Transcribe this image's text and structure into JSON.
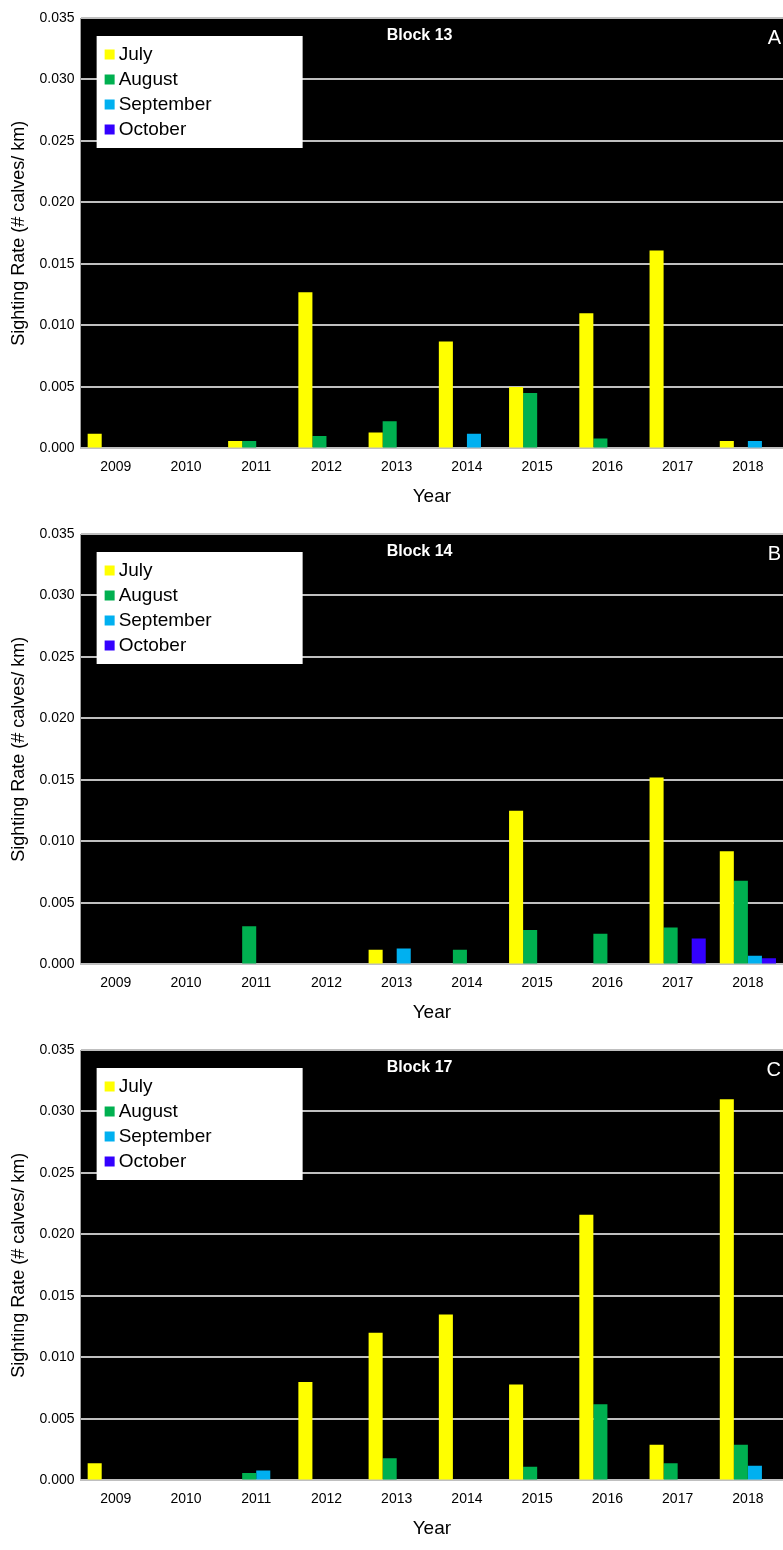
{
  "chart_data": [
    {
      "type": "bar",
      "title": "Block 13",
      "xlabel": "Year",
      "ylabel": "Sighting Rate (# calves/ km)",
      "annotations": [
        "A"
      ],
      "categories": [
        "2009",
        "2010",
        "2011",
        "2012",
        "2013",
        "2014",
        "2015",
        "2016",
        "2017",
        "2018"
      ],
      "series": [
        {
          "name": "July",
          "color": "#ffff00",
          "values": [
            0.0012,
            0,
            0.0006,
            0.0127,
            0.0013,
            0.0087,
            0.005,
            0.011,
            0.0161,
            0.0006
          ]
        },
        {
          "name": "August",
          "color": "#00b050",
          "values": [
            0,
            0,
            0.0006,
            0.001,
            0.0022,
            0,
            0.0045,
            0.0008,
            0,
            0
          ]
        },
        {
          "name": "September",
          "color": "#00b0f0",
          "values": [
            0,
            0,
            0,
            0,
            0,
            0.0012,
            0,
            0,
            0,
            0.0006
          ]
        },
        {
          "name": "October",
          "color": "#3300ff",
          "values": [
            0,
            0,
            0,
            0,
            0,
            0,
            0,
            0,
            0,
            0
          ]
        }
      ],
      "ylim": [
        0,
        0.035
      ],
      "yticks": [
        {
          "value": 0,
          "label": "0.000"
        },
        {
          "value": 0.005,
          "label": "0.005"
        },
        {
          "value": 0.01,
          "label": "0.010"
        },
        {
          "value": 0.015,
          "label": "0.015"
        },
        {
          "value": 0.02,
          "label": "0.020"
        },
        {
          "value": 0.025,
          "label": "0.025"
        },
        {
          "value": 0.03,
          "label": "0.030"
        },
        {
          "value": 0.035,
          "label": "0.035"
        }
      ],
      "grid": "y",
      "legend": "top left"
    },
    {
      "type": "bar",
      "title": "Block 14",
      "xlabel": "Year",
      "ylabel": "Sighting Rate (# calves/ km)",
      "annotations": [
        "B"
      ],
      "categories": [
        "2009",
        "2010",
        "2011",
        "2012",
        "2013",
        "2014",
        "2015",
        "2016",
        "2017",
        "2018"
      ],
      "series": [
        {
          "name": "July",
          "color": "#ffff00",
          "values": [
            0,
            0,
            0,
            0,
            0.0012,
            0,
            0.0125,
            0,
            0.0152,
            0.0092
          ]
        },
        {
          "name": "August",
          "color": "#00b050",
          "values": [
            0,
            0,
            0.0031,
            0,
            0,
            0.0012,
            0.0028,
            0.0025,
            0.003,
            0.0068
          ]
        },
        {
          "name": "September",
          "color": "#00b0f0",
          "values": [
            0,
            0,
            0,
            0,
            0.0013,
            0,
            0,
            0,
            0,
            0.0007
          ]
        },
        {
          "name": "October",
          "color": "#3300ff",
          "values": [
            0,
            0,
            0,
            0,
            0,
            0,
            0,
            0,
            0.0021,
            0.0005
          ]
        }
      ],
      "ylim": [
        0,
        0.035
      ],
      "yticks": [
        {
          "value": 0,
          "label": "0.000"
        },
        {
          "value": 0.005,
          "label": "0.005"
        },
        {
          "value": 0.01,
          "label": "0.010"
        },
        {
          "value": 0.015,
          "label": "0.015"
        },
        {
          "value": 0.02,
          "label": "0.020"
        },
        {
          "value": 0.025,
          "label": "0.025"
        },
        {
          "value": 0.03,
          "label": "0.030"
        },
        {
          "value": 0.035,
          "label": "0.035"
        }
      ],
      "grid": "y",
      "legend": "top left"
    },
    {
      "type": "bar",
      "title": "Block 17",
      "xlabel": "Year",
      "ylabel": "Sighting Rate (# calves/ km)",
      "annotations": [
        "C"
      ],
      "categories": [
        "2009",
        "2010",
        "2011",
        "2012",
        "2013",
        "2014",
        "2015",
        "2016",
        "2017",
        "2018"
      ],
      "series": [
        {
          "name": "July",
          "color": "#ffff00",
          "values": [
            0.0014,
            0,
            0,
            0.008,
            0.012,
            0.0135,
            0.0078,
            0.0216,
            0.0029,
            0.031
          ]
        },
        {
          "name": "August",
          "color": "#00b050",
          "values": [
            0,
            0,
            0.0006,
            0,
            0.0018,
            0,
            0.0011,
            0.0062,
            0.0014,
            0.0029
          ]
        },
        {
          "name": "September",
          "color": "#00b0f0",
          "values": [
            0,
            0,
            0.0008,
            0,
            0,
            0,
            0,
            0,
            0,
            0.0012
          ]
        },
        {
          "name": "October",
          "color": "#3300ff",
          "values": [
            0,
            0,
            0,
            0,
            0,
            0,
            0,
            0,
            0,
            0
          ]
        }
      ],
      "ylim": [
        0,
        0.035
      ],
      "yticks": [
        {
          "value": 0,
          "label": "0.000"
        },
        {
          "value": 0.005,
          "label": "0.005"
        },
        {
          "value": 0.01,
          "label": "0.010"
        },
        {
          "value": 0.015,
          "label": "0.015"
        },
        {
          "value": 0.02,
          "label": "0.020"
        },
        {
          "value": 0.025,
          "label": "0.025"
        },
        {
          "value": 0.03,
          "label": "0.030"
        },
        {
          "value": 0.035,
          "label": "0.035"
        }
      ],
      "grid": "y",
      "legend": "top left"
    }
  ]
}
